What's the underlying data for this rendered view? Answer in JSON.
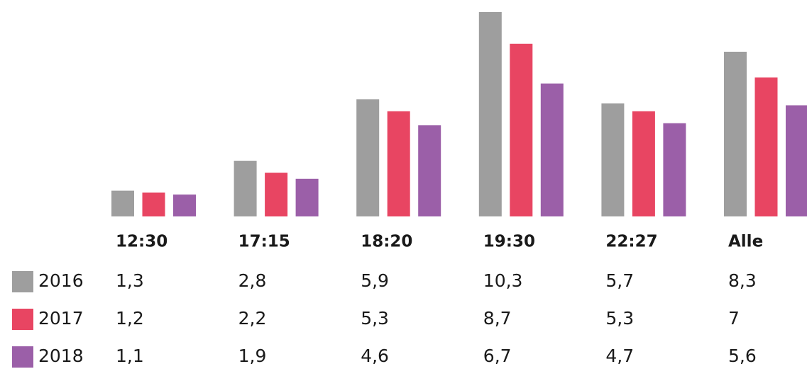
{
  "chart_data": {
    "type": "bar",
    "categories": [
      "12:30",
      "17:15",
      "18:20",
      "19:30",
      "22:27",
      "Alle"
    ],
    "series": [
      {
        "name": "2016",
        "color": "#9e9e9e",
        "values": [
          1.3,
          2.8,
          5.9,
          10.3,
          5.7,
          8.3
        ],
        "value_labels": [
          "1,3",
          "2,8",
          "5,9",
          "10,3",
          "5,7",
          "8,3"
        ]
      },
      {
        "name": "2017",
        "color": "#e84562",
        "values": [
          1.2,
          2.2,
          5.3,
          8.7,
          5.3,
          7
        ],
        "value_labels": [
          "1,2",
          "2,2",
          "5,3",
          "8,7",
          "5,3",
          "7"
        ]
      },
      {
        "name": "2018",
        "color": "#9b5fa8",
        "values": [
          1.1,
          1.9,
          4.6,
          6.7,
          4.7,
          5.6
        ],
        "value_labels": [
          "1,1",
          "1,9",
          "4,6",
          "6,7",
          "4,7",
          "5,6"
        ]
      }
    ]
  }
}
